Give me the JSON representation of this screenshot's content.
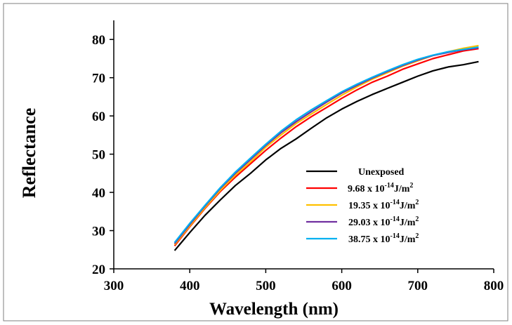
{
  "chart_data": {
    "type": "line",
    "xlabel": "Wavelength (nm)",
    "ylabel": "Reflectance",
    "xlim": [
      300,
      800
    ],
    "ylim": [
      20,
      85
    ],
    "x_ticks": [
      300,
      400,
      500,
      600,
      700,
      800
    ],
    "y_ticks": [
      20,
      30,
      40,
      50,
      60,
      70,
      80
    ],
    "grid": false,
    "legend_position": "lower-right",
    "x": [
      380,
      400,
      420,
      440,
      460,
      480,
      500,
      520,
      540,
      560,
      580,
      600,
      620,
      640,
      660,
      680,
      700,
      720,
      740,
      760,
      780
    ],
    "series": [
      {
        "name": "Unexposed",
        "prefix": "",
        "exp": "",
        "unit": "",
        "color": "#000000",
        "values": [
          24.8,
          29.5,
          34.0,
          38.0,
          41.8,
          45.0,
          48.5,
          51.5,
          54.0,
          56.8,
          59.5,
          61.8,
          63.8,
          65.6,
          67.2,
          68.8,
          70.4,
          71.8,
          72.8,
          73.4,
          74.2
        ]
      },
      {
        "name": "9.68 x 10",
        "prefix": "9.68 x 10",
        "exp": "-14",
        "unit": "J/m",
        "unit_exp": "2",
        "color": "#ff0000",
        "values": [
          26.0,
          31.0,
          35.8,
          40.2,
          44.0,
          47.5,
          51.0,
          54.2,
          57.2,
          59.8,
          62.2,
          64.6,
          66.8,
          68.8,
          70.4,
          72.2,
          73.6,
          75.0,
          76.0,
          77.0,
          77.6
        ]
      },
      {
        "name": "19.35 x 10",
        "prefix": "19.35 x 10",
        "exp": "-14",
        "unit": "J/m",
        "unit_exp": "2",
        "color": "#ffc000",
        "values": [
          26.3,
          31.2,
          36.0,
          40.5,
          44.5,
          48.0,
          51.8,
          55.0,
          58.0,
          60.5,
          63.0,
          65.4,
          67.6,
          69.6,
          71.3,
          73.0,
          74.4,
          75.8,
          76.8,
          77.7,
          78.4
        ]
      },
      {
        "name": "29.03 x 10",
        "prefix": "29.03 x 10",
        "exp": "-14",
        "unit": "J/m",
        "unit_exp": "2",
        "color": "#7030a0",
        "values": [
          26.6,
          31.6,
          36.4,
          41.0,
          45.0,
          48.6,
          52.3,
          55.6,
          58.5,
          61.1,
          63.6,
          66.0,
          68.0,
          69.9,
          71.6,
          73.2,
          74.6,
          75.8,
          76.6,
          77.3,
          77.8
        ]
      },
      {
        "name": "38.75 x 10",
        "prefix": "38.75 x 10",
        "exp": "-14",
        "unit": "J/m",
        "unit_exp": "2",
        "color": "#00b0f0",
        "values": [
          26.9,
          31.9,
          36.6,
          41.2,
          45.3,
          49.0,
          52.6,
          56.0,
          59.0,
          61.6,
          64.0,
          66.3,
          68.3,
          70.1,
          71.8,
          73.4,
          74.8,
          75.9,
          76.8,
          77.4,
          78.0
        ]
      }
    ]
  }
}
